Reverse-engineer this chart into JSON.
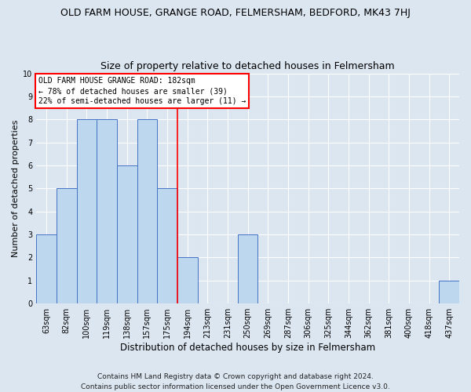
{
  "title": "OLD FARM HOUSE, GRANGE ROAD, FELMERSHAM, BEDFORD, MK43 7HJ",
  "subtitle": "Size of property relative to detached houses in Felmersham",
  "xlabel": "Distribution of detached houses by size in Felmersham",
  "ylabel": "Number of detached properties",
  "categories": [
    "63sqm",
    "82sqm",
    "100sqm",
    "119sqm",
    "138sqm",
    "157sqm",
    "175sqm",
    "194sqm",
    "213sqm",
    "231sqm",
    "250sqm",
    "269sqm",
    "287sqm",
    "306sqm",
    "325sqm",
    "344sqm",
    "362sqm",
    "381sqm",
    "400sqm",
    "418sqm",
    "437sqm"
  ],
  "values": [
    3,
    5,
    8,
    8,
    6,
    8,
    5,
    2,
    0,
    0,
    3,
    0,
    0,
    0,
    0,
    0,
    0,
    0,
    0,
    0,
    1
  ],
  "bar_color": "#bdd7ee",
  "bar_edge_color": "#4472c4",
  "red_line_x": 6.5,
  "ylim": [
    0,
    10
  ],
  "yticks": [
    0,
    1,
    2,
    3,
    4,
    5,
    6,
    7,
    8,
    9,
    10
  ],
  "annotation_title": "OLD FARM HOUSE GRANGE ROAD: 182sqm",
  "annotation_line1": "← 78% of detached houses are smaller (39)",
  "annotation_line2": "22% of semi-detached houses are larger (11) →",
  "footer_line1": "Contains HM Land Registry data © Crown copyright and database right 2024.",
  "footer_line2": "Contains public sector information licensed under the Open Government Licence v3.0.",
  "fig_bg_color": "#dce6f1",
  "plot_bg_color": "#dce6f1",
  "title_fontsize": 9,
  "subtitle_fontsize": 9,
  "tick_fontsize": 7,
  "ylabel_fontsize": 8,
  "xlabel_fontsize": 8.5,
  "footer_fontsize": 6.5,
  "annotation_fontsize": 7
}
